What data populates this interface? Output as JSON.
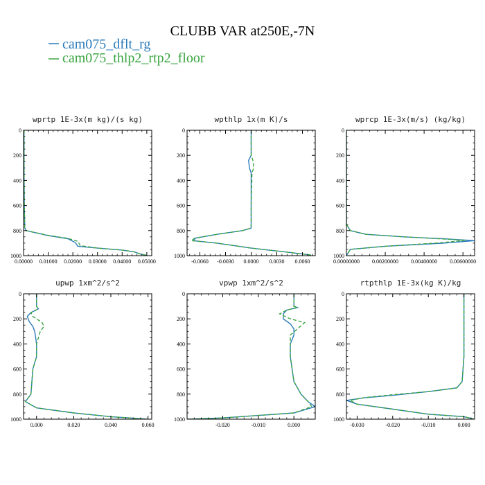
{
  "figure": {
    "title": "CLUBB VAR at250E,-7N",
    "legend": [
      {
        "label": "cam075_dflt_rg",
        "color": "#2b7bba"
      },
      {
        "label": "cam075_thlp2_rtp2_floor",
        "color": "#3aa540"
      }
    ]
  },
  "chart_data": [
    {
      "type": "line",
      "title": "wprtp  1E-3x(m kg)/(s kg)",
      "xlim": [
        0,
        0.052
      ],
      "ylim": [
        1000,
        0
      ],
      "xticks": [
        0,
        0.01,
        0.02,
        0.03,
        0.04,
        0.05
      ],
      "xtick_labels": [
        "0.00000",
        "0.01000",
        "0.02000",
        "0.03000",
        "0.04000",
        "0.05000"
      ],
      "yticks": [
        0,
        200,
        400,
        600,
        800,
        1000
      ],
      "ytick_labels": [
        "0",
        "200",
        "400",
        "600",
        "800",
        "1000"
      ],
      "series": [
        {
          "color": "#2b7bba",
          "dashed": false,
          "points": [
            [
              0.0002,
              0
            ],
            [
              0.0002,
              300
            ],
            [
              0.0003,
              600
            ],
            [
              0.0005,
              780
            ],
            [
              0.001,
              800
            ],
            [
              0.01,
              840
            ],
            [
              0.018,
              865
            ],
            [
              0.021,
              895
            ],
            [
              0.022,
              925
            ],
            [
              0.03,
              940
            ],
            [
              0.04,
              955
            ],
            [
              0.045,
              970
            ],
            [
              0.047,
              985
            ],
            [
              0.05,
              998
            ]
          ]
        },
        {
          "color": "#3aa540",
          "dashed": true,
          "points": [
            [
              0.0002,
              0
            ],
            [
              0.0002,
              300
            ],
            [
              0.0003,
              600
            ],
            [
              0.0005,
              780
            ],
            [
              0.001,
              800
            ],
            [
              0.01,
              838
            ],
            [
              0.018,
              862
            ],
            [
              0.022,
              885
            ],
            [
              0.023,
              920
            ],
            [
              0.03,
              940
            ],
            [
              0.04,
              955
            ],
            [
              0.045,
              970
            ],
            [
              0.047,
              985
            ],
            [
              0.05,
              998
            ]
          ]
        }
      ]
    },
    {
      "type": "line",
      "title": "wpthlp  1x(m K)/s",
      "xlim": [
        -0.0075,
        0.0075
      ],
      "ylim": [
        1000,
        0
      ],
      "xticks": [
        -0.006,
        -0.003,
        0,
        0.003,
        0.006
      ],
      "xtick_labels": [
        "-0.0060",
        "-0.0030",
        "0.0000",
        "0.0030",
        "0.0060"
      ],
      "yticks": [
        0,
        200,
        400,
        600,
        800,
        1000
      ],
      "ytick_labels": [
        "0",
        "200",
        "400",
        "600",
        "800",
        "1000"
      ],
      "series": [
        {
          "color": "#2b7bba",
          "dashed": false,
          "points": [
            [
              0,
              0
            ],
            [
              0,
              200
            ],
            [
              -0.0003,
              240
            ],
            [
              -0.0002,
              300
            ],
            [
              0,
              340
            ],
            [
              0,
              600
            ],
            [
              0,
              780
            ],
            [
              -0.001,
              800
            ],
            [
              -0.004,
              830
            ],
            [
              -0.0065,
              860
            ],
            [
              -0.0068,
              880
            ],
            [
              -0.004,
              900
            ],
            [
              0,
              940
            ],
            [
              0.004,
              970
            ],
            [
              0.007,
              995
            ]
          ]
        },
        {
          "color": "#3aa540",
          "dashed": true,
          "points": [
            [
              0,
              0
            ],
            [
              0,
              200
            ],
            [
              0.0002,
              240
            ],
            [
              0.0003,
              300
            ],
            [
              0.0001,
              340
            ],
            [
              0,
              600
            ],
            [
              0,
              780
            ],
            [
              -0.001,
              800
            ],
            [
              -0.004,
              830
            ],
            [
              -0.0066,
              860
            ],
            [
              -0.007,
              880
            ],
            [
              -0.004,
              900
            ],
            [
              0,
              940
            ],
            [
              0.004,
              970
            ],
            [
              0.007,
              995
            ]
          ]
        }
      ]
    },
    {
      "type": "line",
      "title": "wprcp  1E-3x(m/s) (kg/kg)",
      "xlim": [
        0,
        0.0066
      ],
      "ylim": [
        1000,
        0
      ],
      "xticks": [
        0,
        0.002,
        0.004,
        0.006
      ],
      "xtick_labels": [
        "0.00000000",
        "0.00200000",
        "0.00400000",
        "0.00600000"
      ],
      "yticks": [
        0,
        200,
        400,
        600,
        800,
        1000
      ],
      "ytick_labels": [
        "0",
        "200",
        "400",
        "600",
        "800",
        "1000"
      ],
      "series": [
        {
          "color": "#2b7bba",
          "dashed": false,
          "points": [
            [
              0,
              0
            ],
            [
              0,
              750
            ],
            [
              0.0002,
              800
            ],
            [
              0.001,
              830
            ],
            [
              0.003,
              850
            ],
            [
              0.005,
              865
            ],
            [
              0.0066,
              880
            ],
            [
              0.005,
              900
            ],
            [
              0.002,
              925
            ],
            [
              0.0002,
              950
            ],
            [
              0,
              1000
            ]
          ]
        },
        {
          "color": "#3aa540",
          "dashed": true,
          "points": [
            [
              0,
              0
            ],
            [
              0,
              750
            ],
            [
              0.0002,
              800
            ],
            [
              0.001,
              830
            ],
            [
              0.003,
              850
            ],
            [
              0.0048,
              865
            ],
            [
              0.0061,
              878
            ],
            [
              0.0048,
              898
            ],
            [
              0.002,
              925
            ],
            [
              0.0002,
              950
            ],
            [
              0,
              1000
            ]
          ]
        }
      ]
    },
    {
      "type": "line",
      "title": "upwp  1xm^2/s^2",
      "xlim": [
        -0.007,
        0.062
      ],
      "ylim": [
        1000,
        0
      ],
      "xticks": [
        0,
        0.02,
        0.04,
        0.06
      ],
      "xtick_labels": [
        "0.000",
        "0.020",
        "0.040",
        "0.060"
      ],
      "yticks": [
        0,
        200,
        400,
        600,
        800,
        1000
      ],
      "ytick_labels": [
        "0",
        "200",
        "400",
        "600",
        "800",
        "1000"
      ],
      "series": [
        {
          "color": "#2b7bba",
          "dashed": false,
          "points": [
            [
              0,
              0
            ],
            [
              0,
              100
            ],
            [
              0.001,
              120
            ],
            [
              -0.003,
              150
            ],
            [
              -0.005,
              180
            ],
            [
              -0.004,
              220
            ],
            [
              -0.002,
              260
            ],
            [
              -0.001,
              300
            ],
            [
              0,
              400
            ],
            [
              0,
              500
            ],
            [
              -0.002,
              600
            ],
            [
              -0.003,
              800
            ],
            [
              -0.006,
              860
            ],
            [
              0,
              910
            ],
            [
              0.02,
              950
            ],
            [
              0.04,
              980
            ],
            [
              0.06,
              1000
            ]
          ]
        },
        {
          "color": "#3aa540",
          "dashed": true,
          "points": [
            [
              0,
              0
            ],
            [
              0,
              100
            ],
            [
              0.001,
              120
            ],
            [
              -0.003,
              150
            ],
            [
              -0.002,
              180
            ],
            [
              0.003,
              230
            ],
            [
              0.004,
              260
            ],
            [
              0.002,
              300
            ],
            [
              0,
              400
            ],
            [
              0,
              500
            ],
            [
              -0.002,
              600
            ],
            [
              -0.003,
              800
            ],
            [
              -0.006,
              860
            ],
            [
              0,
              910
            ],
            [
              0.02,
              950
            ],
            [
              0.04,
              980
            ],
            [
              0.06,
              1000
            ]
          ]
        }
      ]
    },
    {
      "type": "line",
      "title": "vpwp  1xm^2/s^2",
      "xlim": [
        -0.03,
        0.006
      ],
      "ylim": [
        1000,
        0
      ],
      "xticks": [
        -0.02,
        -0.01,
        0
      ],
      "xtick_labels": [
        "-0.020",
        "-0.010",
        "0.000"
      ],
      "yticks": [
        0,
        200,
        400,
        600,
        800,
        1000
      ],
      "ytick_labels": [
        "0",
        "200",
        "400",
        "600",
        "800",
        "1000"
      ],
      "series": [
        {
          "color": "#2b7bba",
          "dashed": false,
          "points": [
            [
              0,
              0
            ],
            [
              0,
              100
            ],
            [
              0.001,
              110
            ],
            [
              -0.002,
              130
            ],
            [
              -0.003,
              160
            ],
            [
              -0.003,
              200
            ],
            [
              -0.001,
              240
            ],
            [
              0,
              280
            ],
            [
              0,
              330
            ],
            [
              -0.001,
              400
            ],
            [
              -0.001,
              500
            ],
            [
              0,
              700
            ],
            [
              0.002,
              800
            ],
            [
              0.004,
              860
            ],
            [
              0.006,
              900
            ],
            [
              0,
              950
            ],
            [
              -0.02,
              990
            ],
            [
              -0.03,
              1000
            ]
          ]
        },
        {
          "color": "#3aa540",
          "dashed": true,
          "points": [
            [
              0,
              0
            ],
            [
              0,
              100
            ],
            [
              0.001,
              110
            ],
            [
              -0.002,
              130
            ],
            [
              -0.004,
              160
            ],
            [
              -0.001,
              200
            ],
            [
              0.003,
              230
            ],
            [
              0.001,
              280
            ],
            [
              -0.001,
              330
            ],
            [
              -0.001,
              400
            ],
            [
              -0.001,
              500
            ],
            [
              0,
              700
            ],
            [
              0.002,
              800
            ],
            [
              0.004,
              860
            ],
            [
              0.005,
              900
            ],
            [
              0,
              950
            ],
            [
              -0.02,
              990
            ],
            [
              -0.03,
              1000
            ]
          ]
        }
      ]
    },
    {
      "type": "line",
      "title": "rtpthlp  1E-3x(kg K)/kg",
      "xlim": [
        -0.033,
        0.003
      ],
      "ylim": [
        1000,
        0
      ],
      "xticks": [
        -0.03,
        -0.02,
        -0.01,
        0
      ],
      "xtick_labels": [
        "-0.030",
        "-0.020",
        "-0.010",
        "0.000"
      ],
      "yticks": [
        0,
        200,
        400,
        600,
        800,
        1000
      ],
      "ytick_labels": [
        "0",
        "200",
        "400",
        "600",
        "800",
        "1000"
      ],
      "series": [
        {
          "color": "#2b7bba",
          "dashed": false,
          "points": [
            [
              0,
              0
            ],
            [
              0,
              500
            ],
            [
              -0.0005,
              700
            ],
            [
              -0.002,
              750
            ],
            [
              -0.01,
              780
            ],
            [
              -0.02,
              810
            ],
            [
              -0.028,
              830
            ],
            [
              -0.033,
              850
            ],
            [
              -0.03,
              880
            ],
            [
              -0.02,
              920
            ],
            [
              -0.01,
              960
            ],
            [
              0,
              980
            ],
            [
              0.003,
              1000
            ]
          ]
        },
        {
          "color": "#3aa540",
          "dashed": true,
          "points": [
            [
              0,
              0
            ],
            [
              0,
              500
            ],
            [
              -0.0005,
              700
            ],
            [
              -0.002,
              750
            ],
            [
              -0.01,
              780
            ],
            [
              -0.02,
              805
            ],
            [
              -0.028,
              828
            ],
            [
              -0.032,
              850
            ],
            [
              -0.03,
              880
            ],
            [
              -0.02,
              920
            ],
            [
              -0.01,
              960
            ],
            [
              0,
              980
            ],
            [
              0.003,
              1000
            ]
          ]
        }
      ]
    }
  ]
}
